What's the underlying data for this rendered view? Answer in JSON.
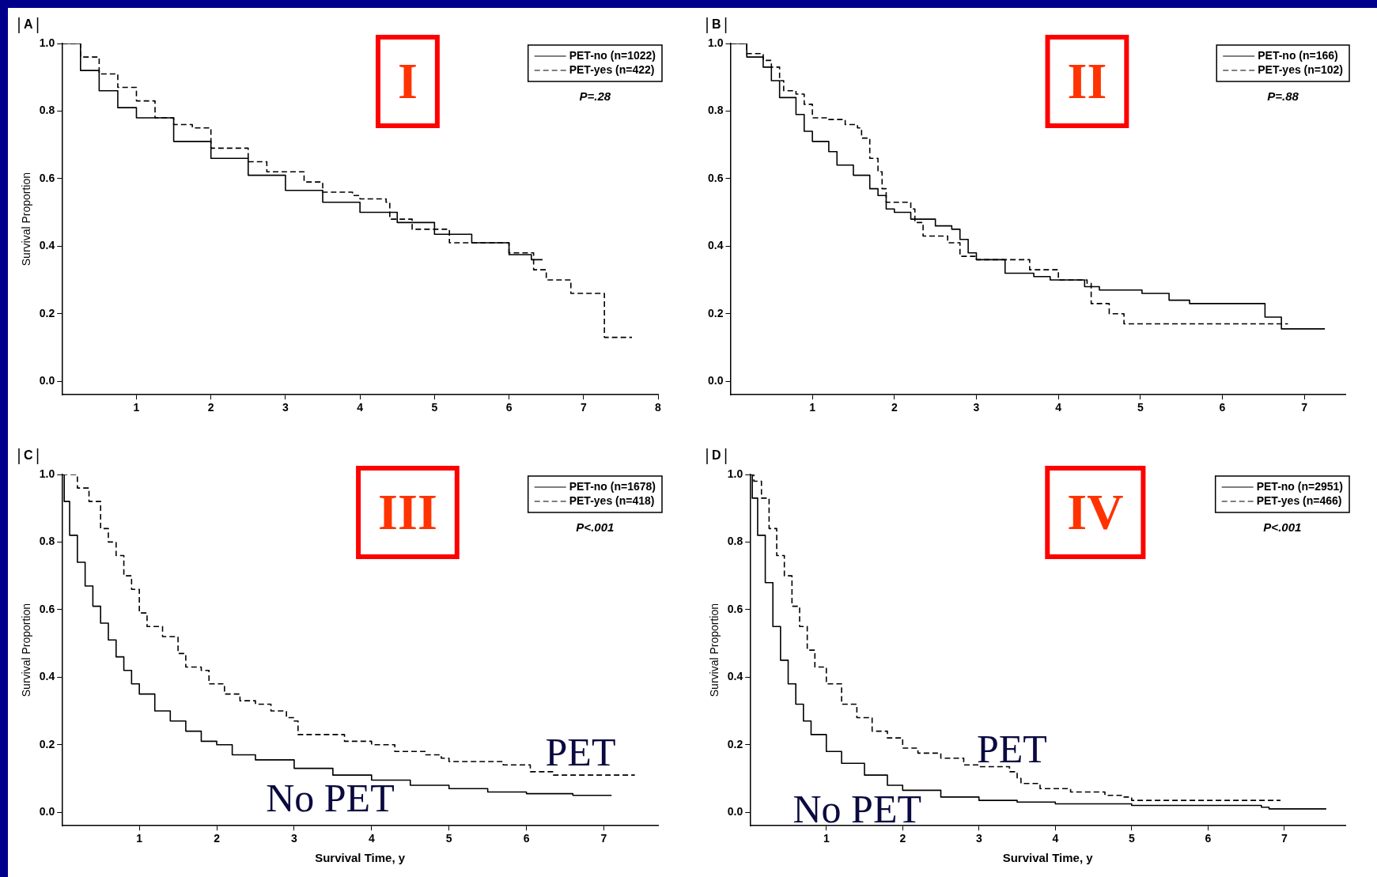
{
  "chart_data": [
    {
      "type": "step",
      "title": "A",
      "subtitle": "I",
      "ylabel": "Survival Proportion",
      "xlim": [
        0,
        8
      ],
      "xticks": [
        1,
        2,
        3,
        4,
        5,
        6,
        7,
        8
      ],
      "ylim": [
        -0.04,
        1.0
      ],
      "yticks": [
        {
          "value": 0,
          "label": "0.0"
        },
        {
          "value": 0.2,
          "label": "0.2"
        },
        {
          "value": 0.4,
          "label": "0.4"
        },
        {
          "value": 0.6,
          "label": "0.6"
        },
        {
          "value": 0.8,
          "label": "0.8"
        },
        {
          "value": 1,
          "label": "1.0"
        }
      ],
      "legend": "top right",
      "annotations": [
        "P=.28"
      ],
      "series": [
        {
          "name": "PET-no (n=1022)",
          "color": "#000000",
          "line_style": "solid",
          "x": [
            0,
            0.25,
            0.5,
            0.75,
            1,
            1.5,
            2,
            2.5,
            3,
            3.5,
            4,
            4.5,
            5,
            5.5,
            6,
            6.3,
            6.45
          ],
          "values": [
            1,
            0.92,
            0.86,
            0.81,
            0.78,
            0.71,
            0.66,
            0.61,
            0.565,
            0.53,
            0.5,
            0.47,
            0.435,
            0.41,
            0.375,
            0.36,
            0.36
          ]
        },
        {
          "name": "PET-yes (n=422)",
          "color": "#000000",
          "line_style": "dashed",
          "x": [
            0,
            0.25,
            0.5,
            0.75,
            1,
            1.25,
            1.5,
            1.75,
            2,
            2.5,
            2.75,
            3.25,
            3.5,
            3.9,
            4,
            4.35,
            4.4,
            4.7,
            5,
            5.2,
            5.8,
            6,
            6.3,
            6.33,
            6.5,
            6.8,
            6.83,
            7.25,
            7.28,
            7.65
          ],
          "values": [
            1,
            0.96,
            0.91,
            0.87,
            0.83,
            0.78,
            0.76,
            0.75,
            0.69,
            0.65,
            0.62,
            0.59,
            0.56,
            0.55,
            0.54,
            0.53,
            0.48,
            0.45,
            0.45,
            0.41,
            0.41,
            0.38,
            0.38,
            0.33,
            0.3,
            0.3,
            0.26,
            0.26,
            0.13,
            0.13
          ]
        }
      ]
    },
    {
      "type": "step",
      "title": "B",
      "subtitle": "II",
      "ylabel": null,
      "xlim": [
        0,
        7.5
      ],
      "xticks": [
        1,
        2,
        3,
        4,
        5,
        6,
        7
      ],
      "ylim": [
        -0.04,
        1.0
      ],
      "yticks": [
        {
          "value": 0,
          "label": "0.0"
        },
        {
          "value": 0.2,
          "label": "0.2"
        },
        {
          "value": 0.4,
          "label": "0.4"
        },
        {
          "value": 0.6,
          "label": "0.6"
        },
        {
          "value": 0.8,
          "label": "0.8"
        },
        {
          "value": 1,
          "label": "1.0"
        }
      ],
      "legend": "top right",
      "annotations": [
        "P=.88"
      ],
      "series": [
        {
          "name": "PET-no (n=166)",
          "color": "#000000",
          "line_style": "solid",
          "x": [
            0,
            0.2,
            0.4,
            0.5,
            0.6,
            0.8,
            0.9,
            1,
            1.2,
            1.3,
            1.5,
            1.7,
            1.8,
            1.9,
            2,
            2.2,
            2.5,
            2.7,
            2.8,
            2.9,
            3,
            3.3,
            3.35,
            3.65,
            3.7,
            3.9,
            4.3,
            4.32,
            4.5,
            5,
            5.02,
            5.3,
            5.35,
            5.55,
            5.6,
            6.5,
            6.52,
            6.7,
            6.72,
            7.25
          ],
          "values": [
            1,
            0.96,
            0.93,
            0.89,
            0.84,
            0.79,
            0.74,
            0.71,
            0.68,
            0.64,
            0.61,
            0.57,
            0.55,
            0.51,
            0.5,
            0.48,
            0.46,
            0.45,
            0.42,
            0.38,
            0.36,
            0.36,
            0.32,
            0.32,
            0.31,
            0.3,
            0.3,
            0.28,
            0.27,
            0.27,
            0.26,
            0.26,
            0.24,
            0.24,
            0.23,
            0.23,
            0.19,
            0.19,
            0.155,
            0.155
          ]
        },
        {
          "name": "PET-yes (n=102)",
          "color": "#000000",
          "line_style": "dashed",
          "x": [
            0,
            0.2,
            0.4,
            0.5,
            0.6,
            0.65,
            0.8,
            0.9,
            1,
            1.2,
            1.4,
            1.55,
            1.6,
            1.7,
            1.8,
            1.85,
            1.9,
            2.2,
            2.25,
            2.35,
            2.6,
            2.65,
            2.8,
            3,
            3.6,
            3.65,
            3.9,
            4,
            4.3,
            4.35,
            4.4,
            4.6,
            4.62,
            4.75,
            4.8,
            6.8
          ],
          "values": [
            1,
            0.97,
            0.95,
            0.93,
            0.89,
            0.86,
            0.85,
            0.82,
            0.78,
            0.775,
            0.76,
            0.75,
            0.72,
            0.66,
            0.62,
            0.57,
            0.53,
            0.51,
            0.47,
            0.43,
            0.43,
            0.41,
            0.37,
            0.36,
            0.36,
            0.33,
            0.33,
            0.3,
            0.3,
            0.29,
            0.23,
            0.23,
            0.2,
            0.2,
            0.17,
            0.17
          ]
        }
      ]
    },
    {
      "type": "step",
      "title": "C",
      "subtitle": "III",
      "ylabel": "Survival Proportion",
      "xlabel": "Survival Time, y",
      "xlim": [
        0,
        7.7
      ],
      "xticks": [
        1,
        2,
        3,
        4,
        5,
        6,
        7
      ],
      "ylim": [
        -0.04,
        1.0
      ],
      "yticks": [
        {
          "value": 0,
          "label": "0.0"
        },
        {
          "value": 0.2,
          "label": "0.2"
        },
        {
          "value": 0.4,
          "label": "0.4"
        },
        {
          "value": 0.6,
          "label": "0.6"
        },
        {
          "value": 0.8,
          "label": "0.8"
        },
        {
          "value": 1,
          "label": "1.0"
        }
      ],
      "legend": "top right",
      "annotations": [
        "P<.001",
        "PET",
        "No PET"
      ],
      "series": [
        {
          "name": "PET-no (n=1678)",
          "color": "#000000",
          "line_style": "solid",
          "x": [
            0,
            0.03,
            0.1,
            0.2,
            0.3,
            0.4,
            0.5,
            0.6,
            0.7,
            0.8,
            0.9,
            1,
            1.2,
            1.4,
            1.6,
            1.8,
            2,
            2.2,
            2.5,
            3,
            3.5,
            4,
            4.5,
            5,
            5.5,
            6,
            6.6,
            7.1
          ],
          "values": [
            1,
            0.92,
            0.82,
            0.74,
            0.67,
            0.61,
            0.56,
            0.51,
            0.46,
            0.42,
            0.38,
            0.35,
            0.3,
            0.27,
            0.24,
            0.21,
            0.2,
            0.17,
            0.155,
            0.13,
            0.11,
            0.095,
            0.08,
            0.07,
            0.06,
            0.055,
            0.05,
            0.05
          ]
        },
        {
          "name": "PET-yes (n=418)",
          "color": "#000000",
          "line_style": "dashed",
          "x": [
            0,
            0.1,
            0.2,
            0.35,
            0.5,
            0.6,
            0.7,
            0.8,
            0.9,
            1,
            1.1,
            1.3,
            1.5,
            1.6,
            1.8,
            1.9,
            2.1,
            2.3,
            2.5,
            2.7,
            2.9,
            3,
            3.05,
            3.6,
            3.65,
            4,
            4.3,
            4.7,
            4.9,
            5,
            5.6,
            5.7,
            6,
            6.05,
            6.3,
            6.35,
            7.4
          ],
          "values": [
            1,
            1,
            0.96,
            0.92,
            0.84,
            0.8,
            0.76,
            0.7,
            0.66,
            0.59,
            0.55,
            0.52,
            0.47,
            0.43,
            0.42,
            0.38,
            0.35,
            0.33,
            0.32,
            0.3,
            0.28,
            0.27,
            0.23,
            0.23,
            0.21,
            0.2,
            0.18,
            0.17,
            0.16,
            0.15,
            0.15,
            0.14,
            0.14,
            0.12,
            0.12,
            0.11,
            0.11
          ]
        }
      ]
    },
    {
      "type": "step",
      "title": "D",
      "subtitle": "IV",
      "ylabel": "Survival Proportion",
      "xlabel": "Survival Time, y",
      "xlim": [
        0,
        7.8
      ],
      "xticks": [
        1,
        2,
        3,
        4,
        5,
        6,
        7
      ],
      "ylim": [
        -0.04,
        1.0
      ],
      "yticks": [
        {
          "value": 0,
          "label": "0.0"
        },
        {
          "value": 0.2,
          "label": "0.2"
        },
        {
          "value": 0.4,
          "label": "0.4"
        },
        {
          "value": 0.6,
          "label": "0.6"
        },
        {
          "value": 0.8,
          "label": "0.8"
        },
        {
          "value": 1,
          "label": "1.0"
        }
      ],
      "legend": "top right",
      "annotations": [
        "P<.001",
        "PET",
        "No PET"
      ],
      "series": [
        {
          "name": "PET-no (n=2951)",
          "color": "#000000",
          "line_style": "solid",
          "x": [
            0,
            0.03,
            0.1,
            0.2,
            0.3,
            0.4,
            0.5,
            0.6,
            0.7,
            0.8,
            1,
            1.2,
            1.5,
            1.8,
            2,
            2.5,
            3,
            3.5,
            4,
            5,
            6,
            6.7,
            6.8,
            7.55
          ],
          "values": [
            1,
            0.93,
            0.82,
            0.68,
            0.55,
            0.45,
            0.38,
            0.32,
            0.27,
            0.23,
            0.18,
            0.145,
            0.11,
            0.08,
            0.065,
            0.045,
            0.035,
            0.03,
            0.025,
            0.02,
            0.02,
            0.015,
            0.01,
            0.01
          ]
        },
        {
          "name": "PET-yes (n=466)",
          "color": "#000000",
          "line_style": "dashed",
          "x": [
            0,
            0.05,
            0.15,
            0.25,
            0.35,
            0.45,
            0.55,
            0.65,
            0.75,
            0.85,
            1,
            1.2,
            1.4,
            1.6,
            1.8,
            2,
            2.2,
            2.5,
            2.8,
            3,
            3.4,
            3.5,
            3.55,
            3.75,
            3.8,
            4.2,
            4.6,
            4.65,
            4.9,
            5,
            6.95
          ],
          "values": [
            1,
            0.98,
            0.93,
            0.84,
            0.76,
            0.7,
            0.61,
            0.55,
            0.48,
            0.43,
            0.38,
            0.32,
            0.28,
            0.24,
            0.22,
            0.19,
            0.175,
            0.16,
            0.14,
            0.135,
            0.12,
            0.1,
            0.085,
            0.085,
            0.07,
            0.06,
            0.06,
            0.05,
            0.045,
            0.035,
            0.035
          ]
        }
      ]
    }
  ]
}
